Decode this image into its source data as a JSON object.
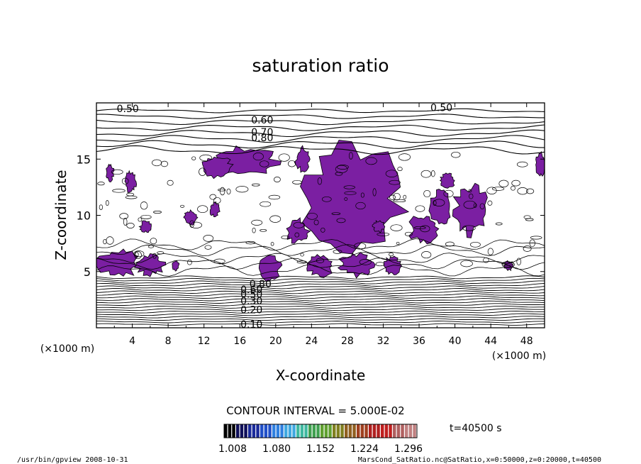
{
  "chart_data": {
    "type": "contour",
    "title": "saturation ratio",
    "xlabel": "X-coordinate",
    "ylabel": "Z-coordinate",
    "x_unit": "(×1000 m)",
    "y_unit": "(×1000 m)",
    "xlim": [
      0,
      50
    ],
    "ylim": [
      0,
      20
    ],
    "x_ticks": [
      "4",
      "8",
      "12",
      "16",
      "20",
      "24",
      "28",
      "32",
      "36",
      "40",
      "44",
      "48"
    ],
    "y_ticks": [
      "5",
      "10",
      "15"
    ],
    "contour_labels": [
      {
        "text": "0.50",
        "x": 3.5,
        "z": 19.5
      },
      {
        "text": "0.50",
        "x": 38.5,
        "z": 19.6
      },
      {
        "text": "0.60",
        "x": 18.5,
        "z": 18.5
      },
      {
        "text": "0.70",
        "x": 18.5,
        "z": 17.4
      },
      {
        "text": "0.80",
        "x": 18.5,
        "z": 16.9
      },
      {
        "text": "0.80",
        "x": 18.3,
        "z": 3.9
      },
      {
        "text": "0.60",
        "x": 17.3,
        "z": 3.4
      },
      {
        "text": "0.50",
        "x": 17.3,
        "z": 3.0
      },
      {
        "text": "0.30",
        "x": 17.3,
        "z": 2.4
      },
      {
        "text": "0.20",
        "x": 17.3,
        "z": 1.6
      },
      {
        "text": "0.10",
        "x": 17.3,
        "z": 0.3
      }
    ],
    "supersaturated_regions_color": "#7b1fa2",
    "supersaturated_regions": [
      {
        "cx": 28.5,
        "cz": 11.5,
        "rx": 5.5,
        "rz": 4.5
      },
      {
        "cx": 16.5,
        "cz": 14.8,
        "rx": 3.5,
        "rz": 1.2
      },
      {
        "cx": 13.5,
        "cz": 14.3,
        "rx": 1.6,
        "rz": 0.9
      },
      {
        "cx": 2.5,
        "cz": 5.8,
        "rx": 2.2,
        "rz": 1.2
      },
      {
        "cx": 6.0,
        "cz": 5.6,
        "rx": 1.5,
        "rz": 0.9
      },
      {
        "cx": 1.5,
        "cz": 13.8,
        "rx": 0.4,
        "rz": 0.7
      },
      {
        "cx": 3.8,
        "cz": 13.0,
        "rx": 0.6,
        "rz": 0.9
      },
      {
        "cx": 23.0,
        "cz": 15.0,
        "rx": 0.8,
        "rz": 1.0
      },
      {
        "cx": 22.4,
        "cz": 8.6,
        "rx": 1.2,
        "rz": 1.0
      },
      {
        "cx": 19.3,
        "cz": 5.3,
        "rx": 1.2,
        "rz": 1.0
      },
      {
        "cx": 25.0,
        "cz": 5.5,
        "rx": 1.4,
        "rz": 0.9
      },
      {
        "cx": 29.0,
        "cz": 5.6,
        "rx": 1.8,
        "rz": 1.0
      },
      {
        "cx": 33.0,
        "cz": 5.5,
        "rx": 0.9,
        "rz": 0.8
      },
      {
        "cx": 36.5,
        "cz": 8.8,
        "rx": 1.5,
        "rz": 1.2
      },
      {
        "cx": 38.5,
        "cz": 10.8,
        "rx": 1.2,
        "rz": 1.5
      },
      {
        "cx": 41.8,
        "cz": 10.5,
        "rx": 1.8,
        "rz": 2.2
      },
      {
        "cx": 39.2,
        "cz": 13.1,
        "rx": 0.8,
        "rz": 0.6
      },
      {
        "cx": 49.5,
        "cz": 14.5,
        "rx": 0.5,
        "rz": 1.0
      },
      {
        "cx": 10.5,
        "cz": 9.8,
        "rx": 0.8,
        "rz": 0.6
      },
      {
        "cx": 5.5,
        "cz": 9.0,
        "rx": 0.6,
        "rz": 0.5
      },
      {
        "cx": 13.2,
        "cz": 10.5,
        "rx": 0.5,
        "rz": 0.6
      },
      {
        "cx": 8.8,
        "cz": 5.5,
        "rx": 0.4,
        "rz": 0.4
      },
      {
        "cx": 46.0,
        "cz": 5.5,
        "rx": 0.5,
        "rz": 0.4
      },
      {
        "cx": 31.5,
        "cz": 9.0,
        "rx": 0.6,
        "rz": 0.5
      }
    ],
    "colorbar": {
      "ticks": [
        "1.008",
        "1.080",
        "1.152",
        "1.224",
        "1.296"
      ],
      "colors": [
        "#000000",
        "#10105a",
        "#1a2a9a",
        "#2050c8",
        "#3080e0",
        "#40a8e0",
        "#40b8a0",
        "#40a050",
        "#60a030",
        "#808020",
        "#906020",
        "#a04020",
        "#b02020",
        "#c02020",
        "#b06060",
        "#c08080"
      ]
    }
  },
  "contour_interval_text": "CONTOUR INTERVAL = 5.000E-02",
  "time_label": "t=40500 s",
  "footer_left": "/usr/bin/gpview   2008-10-31",
  "footer_right": "MarsCond_SatRatio.nc@SatRatio,x=0:50000,z=0:20000,t=40500"
}
